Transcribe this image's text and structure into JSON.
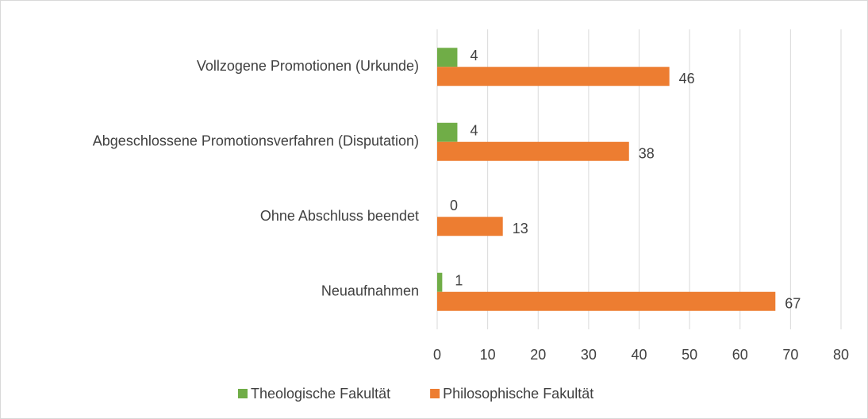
{
  "chart_data": {
    "type": "bar",
    "orientation": "horizontal",
    "categories": [
      "Vollzogene Promotionen (Urkunde)",
      "Abgeschlossene Promotionsverfahren (Disputation)",
      "Ohne Abschluss beendet",
      "Neuaufnahmen"
    ],
    "series": [
      {
        "name": "Theologische Fakultät",
        "color": "#70ad47",
        "values": [
          4,
          4,
          0,
          1
        ]
      },
      {
        "name": "Philosophische Fakultät",
        "color": "#ed7d31",
        "values": [
          46,
          38,
          13,
          67
        ]
      }
    ],
    "xlim": [
      0,
      80
    ],
    "xticks": [
      0,
      10,
      20,
      30,
      40,
      50,
      60,
      70,
      80
    ],
    "grid": true,
    "legend": "bottom"
  }
}
